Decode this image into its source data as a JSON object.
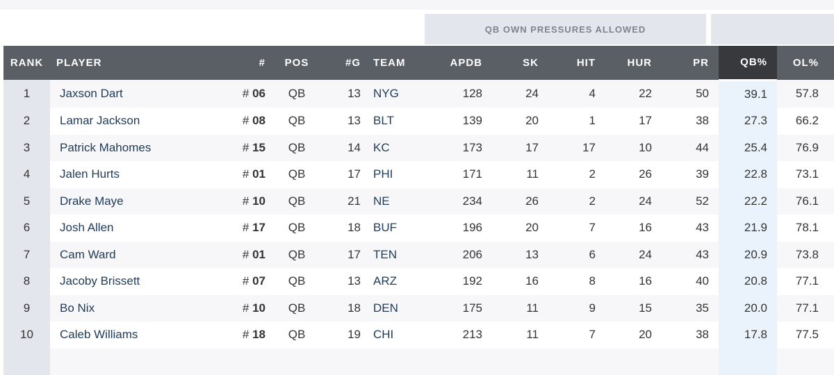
{
  "group_headers": {
    "pressures": "QB OWN PRESSURES ALLOWED",
    "share": ""
  },
  "columns": [
    "RANK",
    "PLAYER",
    "#",
    "POS",
    "#G",
    "TEAM",
    "APDB",
    "SK",
    "HIT",
    "HUR",
    "PR",
    "QB%",
    "OL%"
  ],
  "sorted_column": "QB%",
  "rows": [
    {
      "rank": "1",
      "player": "Jaxson Dart",
      "num_prefix": "#",
      "num": "06",
      "pos": "QB",
      "g": "13",
      "team": "NYG",
      "apdb": "128",
      "sk": "24",
      "hit": "4",
      "hur": "22",
      "pr": "50",
      "qb": "39.1",
      "ol": "57.8"
    },
    {
      "rank": "2",
      "player": "Lamar Jackson",
      "num_prefix": "#",
      "num": "08",
      "pos": "QB",
      "g": "13",
      "team": "BLT",
      "apdb": "139",
      "sk": "20",
      "hit": "1",
      "hur": "17",
      "pr": "38",
      "qb": "27.3",
      "ol": "66.2"
    },
    {
      "rank": "3",
      "player": "Patrick Mahomes",
      "num_prefix": "#",
      "num": "15",
      "pos": "QB",
      "g": "14",
      "team": "KC",
      "apdb": "173",
      "sk": "17",
      "hit": "17",
      "hur": "10",
      "pr": "44",
      "qb": "25.4",
      "ol": "76.9"
    },
    {
      "rank": "4",
      "player": "Jalen Hurts",
      "num_prefix": "#",
      "num": "01",
      "pos": "QB",
      "g": "17",
      "team": "PHI",
      "apdb": "171",
      "sk": "11",
      "hit": "2",
      "hur": "26",
      "pr": "39",
      "qb": "22.8",
      "ol": "73.1"
    },
    {
      "rank": "5",
      "player": "Drake Maye",
      "num_prefix": "#",
      "num": "10",
      "pos": "QB",
      "g": "21",
      "team": "NE",
      "apdb": "234",
      "sk": "26",
      "hit": "2",
      "hur": "24",
      "pr": "52",
      "qb": "22.2",
      "ol": "76.1"
    },
    {
      "rank": "6",
      "player": "Josh Allen",
      "num_prefix": "#",
      "num": "17",
      "pos": "QB",
      "g": "18",
      "team": "BUF",
      "apdb": "196",
      "sk": "20",
      "hit": "7",
      "hur": "16",
      "pr": "43",
      "qb": "21.9",
      "ol": "78.1"
    },
    {
      "rank": "7",
      "player": "Cam Ward",
      "num_prefix": "#",
      "num": "01",
      "pos": "QB",
      "g": "17",
      "team": "TEN",
      "apdb": "206",
      "sk": "13",
      "hit": "6",
      "hur": "24",
      "pr": "43",
      "qb": "20.9",
      "ol": "73.8"
    },
    {
      "rank": "8",
      "player": "Jacoby Brissett",
      "num_prefix": "#",
      "num": "07",
      "pos": "QB",
      "g": "13",
      "team": "ARZ",
      "apdb": "192",
      "sk": "16",
      "hit": "8",
      "hur": "16",
      "pr": "40",
      "qb": "20.8",
      "ol": "77.1"
    },
    {
      "rank": "9",
      "player": "Bo Nix",
      "num_prefix": "#",
      "num": "10",
      "pos": "QB",
      "g": "18",
      "team": "DEN",
      "apdb": "175",
      "sk": "11",
      "hit": "9",
      "hur": "15",
      "pr": "35",
      "qb": "20.0",
      "ol": "77.1"
    },
    {
      "rank": "10",
      "player": "Caleb Williams",
      "num_prefix": "#",
      "num": "18",
      "pos": "QB",
      "g": "19",
      "team": "CHI",
      "apdb": "213",
      "sk": "11",
      "hit": "7",
      "hur": "20",
      "pr": "38",
      "qb": "17.8",
      "ol": "77.5"
    }
  ]
}
